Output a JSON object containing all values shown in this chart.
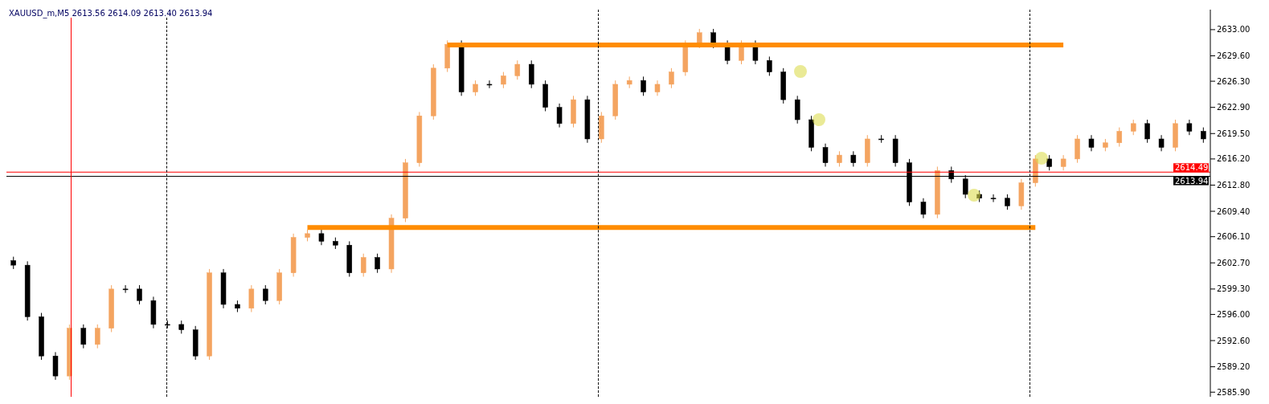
{
  "chart_data": {
    "type": "candlestick",
    "title": "XAUUSD_m,M5 2613.56 2614.09 2613.40 2613.94",
    "categories": [
      null,
      null,
      null,
      null,
      null,
      null,
      null,
      null,
      null,
      null,
      null,
      null,
      null,
      null,
      null,
      null,
      null,
      null,
      null,
      null,
      null,
      null,
      null,
      null,
      null,
      null,
      null,
      null,
      null,
      null,
      null,
      null,
      null,
      null,
      null,
      null,
      null,
      null,
      null,
      null,
      null,
      null,
      null,
      null,
      null,
      null,
      null,
      null,
      null,
      null,
      null,
      null,
      null,
      null,
      null,
      null,
      null,
      null,
      null,
      null,
      null,
      null,
      null,
      null,
      null,
      null,
      null,
      null,
      null,
      null,
      null,
      null,
      null,
      null,
      null,
      null,
      null,
      null,
      null,
      null,
      null,
      null,
      null,
      null,
      null,
      null
    ],
    "ohlc": [
      [
        2603.0,
        2603.5,
        2601.9,
        2602.4
      ],
      [
        2602.4,
        2602.9,
        2595.2,
        2595.7
      ],
      [
        2595.7,
        2596.2,
        2590.1,
        2590.6
      ],
      [
        2590.6,
        2591.1,
        2587.5,
        2588.0
      ],
      [
        2588.0,
        2594.7,
        2587.5,
        2594.2
      ],
      [
        2594.2,
        2594.7,
        2591.6,
        2592.1
      ],
      [
        2592.1,
        2594.7,
        2591.6,
        2594.2
      ],
      [
        2594.2,
        2599.8,
        2593.7,
        2599.3
      ],
      [
        2599.3,
        2599.8,
        2598.8,
        2599.3
      ],
      [
        2599.3,
        2599.8,
        2597.3,
        2597.8
      ],
      [
        2597.8,
        2598.3,
        2594.2,
        2594.7
      ],
      [
        2594.7,
        2595.2,
        2594.2,
        2594.7
      ],
      [
        2594.7,
        2595.2,
        2593.5,
        2594.0
      ],
      [
        2594.0,
        2594.5,
        2590.1,
        2590.6
      ],
      [
        2590.6,
        2601.9,
        2590.1,
        2601.4
      ],
      [
        2601.4,
        2601.9,
        2596.8,
        2597.3
      ],
      [
        2597.3,
        2597.8,
        2596.3,
        2596.8
      ],
      [
        2596.8,
        2599.8,
        2596.3,
        2599.3
      ],
      [
        2599.3,
        2599.8,
        2597.3,
        2597.8
      ],
      [
        2597.8,
        2601.9,
        2597.3,
        2601.4
      ],
      [
        2601.4,
        2606.5,
        2600.9,
        2606.0
      ],
      [
        2606.0,
        2607.0,
        2605.5,
        2606.5
      ],
      [
        2606.5,
        2607.0,
        2605.0,
        2605.5
      ],
      [
        2605.5,
        2606.0,
        2604.5,
        2605.0
      ],
      [
        2605.0,
        2605.5,
        2600.9,
        2601.4
      ],
      [
        2601.4,
        2603.9,
        2600.9,
        2603.4
      ],
      [
        2603.4,
        2603.9,
        2601.4,
        2601.9
      ],
      [
        2601.9,
        2609.0,
        2601.4,
        2608.5
      ],
      [
        2608.5,
        2616.2,
        2608.0,
        2615.7
      ],
      [
        2615.7,
        2622.3,
        2615.2,
        2621.8
      ],
      [
        2621.8,
        2628.5,
        2621.3,
        2628.0
      ],
      [
        2628.0,
        2631.6,
        2627.5,
        2631.1
      ],
      [
        2631.1,
        2631.6,
        2624.4,
        2624.9
      ],
      [
        2624.9,
        2626.4,
        2624.4,
        2625.9
      ],
      [
        2625.9,
        2626.4,
        2625.4,
        2625.9
      ],
      [
        2625.9,
        2627.5,
        2625.4,
        2627.0
      ],
      [
        2627.0,
        2629.0,
        2626.5,
        2628.5
      ],
      [
        2628.5,
        2629.0,
        2625.4,
        2625.9
      ],
      [
        2625.9,
        2626.4,
        2622.4,
        2622.9
      ],
      [
        2622.9,
        2623.4,
        2620.3,
        2620.8
      ],
      [
        2620.8,
        2624.4,
        2620.3,
        2623.9
      ],
      [
        2623.9,
        2624.4,
        2618.3,
        2618.8
      ],
      [
        2618.8,
        2622.3,
        2618.3,
        2621.8
      ],
      [
        2621.8,
        2626.4,
        2621.3,
        2625.9
      ],
      [
        2625.9,
        2626.9,
        2625.4,
        2626.4
      ],
      [
        2626.4,
        2626.9,
        2624.4,
        2624.9
      ],
      [
        2624.9,
        2626.4,
        2624.4,
        2625.9
      ],
      [
        2625.9,
        2628.0,
        2625.4,
        2627.5
      ],
      [
        2627.5,
        2631.6,
        2627.0,
        2631.1
      ],
      [
        2631.1,
        2633.1,
        2630.6,
        2632.6
      ],
      [
        2632.6,
        2633.1,
        2630.6,
        2631.1
      ],
      [
        2631.1,
        2631.6,
        2628.5,
        2629.0
      ],
      [
        2629.0,
        2631.6,
        2628.5,
        2631.1
      ],
      [
        2631.1,
        2631.6,
        2628.5,
        2629.0
      ],
      [
        2629.0,
        2629.5,
        2627.0,
        2627.5
      ],
      [
        2627.5,
        2628.0,
        2623.4,
        2623.9
      ],
      [
        2623.9,
        2624.4,
        2620.8,
        2621.3
      ],
      [
        2621.3,
        2621.8,
        2617.2,
        2617.7
      ],
      [
        2617.7,
        2618.2,
        2615.2,
        2615.7
      ],
      [
        2615.7,
        2617.2,
        2615.2,
        2616.7
      ],
      [
        2616.7,
        2617.2,
        2615.2,
        2615.7
      ],
      [
        2615.7,
        2619.3,
        2615.2,
        2618.8
      ],
      [
        2618.8,
        2619.3,
        2618.3,
        2618.8
      ],
      [
        2618.8,
        2619.3,
        2615.2,
        2615.7
      ],
      [
        2615.7,
        2616.2,
        2610.1,
        2610.6
      ],
      [
        2610.6,
        2611.1,
        2608.5,
        2609.0
      ],
      [
        2609.0,
        2615.2,
        2608.5,
        2614.7
      ],
      [
        2614.7,
        2615.2,
        2613.1,
        2613.6
      ],
      [
        2613.6,
        2614.1,
        2611.1,
        2611.6
      ],
      [
        2611.6,
        2612.1,
        2610.6,
        2611.1
      ],
      [
        2611.1,
        2611.6,
        2610.6,
        2611.1
      ],
      [
        2611.1,
        2611.6,
        2609.6,
        2610.1
      ],
      [
        2610.1,
        2613.6,
        2609.6,
        2613.1
      ],
      [
        2613.1,
        2616.7,
        2612.6,
        2616.2
      ],
      [
        2616.2,
        2616.7,
        2614.7,
        2615.2
      ],
      [
        2615.2,
        2616.7,
        2614.7,
        2616.2
      ],
      [
        2616.2,
        2619.3,
        2615.7,
        2618.8
      ],
      [
        2618.8,
        2619.3,
        2617.2,
        2617.7
      ],
      [
        2617.7,
        2618.8,
        2617.2,
        2618.3
      ],
      [
        2618.3,
        2620.3,
        2617.8,
        2619.8
      ],
      [
        2619.8,
        2621.3,
        2619.3,
        2620.8
      ],
      [
        2620.8,
        2621.3,
        2618.3,
        2618.8
      ],
      [
        2618.8,
        2619.3,
        2617.2,
        2617.7
      ],
      [
        2617.7,
        2621.3,
        2617.2,
        2620.8
      ],
      [
        2620.8,
        2621.3,
        2619.3,
        2619.8
      ],
      [
        2619.8,
        2620.3,
        2618.3,
        2618.8
      ]
    ],
    "colors": [
      "#000000",
      "#000000",
      "#000000",
      "#000000",
      "#f4a460",
      "#000000",
      "#f4a460",
      "#f4a460",
      "#000000",
      "#000000",
      "#000000",
      "#000000",
      "#000000",
      "#000000",
      "#f4a460",
      "#000000",
      "#000000",
      "#f4a460",
      "#000000",
      "#f4a460",
      "#f4a460",
      "#f4a460",
      "#000000",
      "#000000",
      "#000000",
      "#f4a460",
      "#000000",
      "#f4a460",
      "#f4a460",
      "#f4a460",
      "#f4a460",
      "#f4a460",
      "#000000",
      "#f4a460",
      "#000000",
      "#f4a460",
      "#f4a460",
      "#000000",
      "#000000",
      "#000000",
      "#f4a460",
      "#000000",
      "#f4a460",
      "#f4a460",
      "#f4a460",
      "#000000",
      "#f4a460",
      "#f4a460",
      "#f4a460",
      "#f4a460",
      "#000000",
      "#000000",
      "#f4a460",
      "#000000",
      "#000000",
      "#000000",
      "#000000",
      "#000000",
      "#000000",
      "#f4a460",
      "#000000",
      "#f4a460",
      "#000000",
      "#000000",
      "#000000",
      "#000000",
      "#f4a460",
      "#000000",
      "#000000",
      "#000000",
      "#000000",
      "#000000",
      "#f4a460",
      "#f4a460",
      "#000000",
      "#f4a460",
      "#f4a460",
      "#000000",
      "#f4a460",
      "#f4a460",
      "#f4a460",
      "#000000",
      "#000000",
      "#f4a460",
      "#000000",
      "#000000"
    ],
    "series": [
      {
        "type": "line",
        "color": "#ff8c00",
        "values": [
          null,
          null,
          null,
          null,
          null,
          null,
          null,
          null,
          null,
          null,
          null,
          null,
          null,
          null,
          null,
          null,
          null,
          null,
          null,
          null,
          null,
          null,
          null,
          null,
          null,
          null,
          null,
          null,
          null,
          null,
          null,
          2631.0,
          2631.0,
          2631.0,
          2631.0,
          2631.0,
          2631.0,
          2631.0,
          2631.0,
          2631.0,
          2631.0,
          2631.0,
          2631.0,
          2631.0,
          2631.0,
          2631.0,
          2631.0,
          2631.0,
          2631.0,
          2631.0,
          2631.0,
          2631.0,
          2631.0,
          2631.0,
          2631.0,
          2631.0,
          2631.0,
          2631.0,
          2631.0,
          2631.0,
          2631.0,
          2631.0,
          2631.0,
          2631.0,
          2631.0,
          2631.0,
          2631.0,
          2631.0,
          2631.0,
          2631.0,
          2631.0,
          2631.0,
          2631.0,
          2631.0,
          2631.0,
          2631.0,
          null,
          null,
          null,
          null,
          null,
          null,
          null,
          null,
          null,
          null
        ]
      },
      {
        "type": "line",
        "color": "#ff8c00",
        "values": [
          null,
          null,
          null,
          null,
          null,
          null,
          null,
          null,
          null,
          null,
          null,
          null,
          null,
          null,
          null,
          null,
          null,
          null,
          null,
          null,
          null,
          2607.3,
          2607.3,
          2607.3,
          2607.3,
          2607.3,
          2607.3,
          2607.3,
          2607.3,
          2607.3,
          2607.3,
          2607.3,
          2607.3,
          2607.3,
          2607.3,
          2607.3,
          2607.3,
          2607.3,
          2607.3,
          2607.3,
          2607.3,
          2607.3,
          2607.3,
          2607.3,
          2607.3,
          2607.3,
          2607.3,
          2607.3,
          2607.3,
          2607.3,
          2607.3,
          2607.3,
          2607.3,
          2607.3,
          2607.3,
          2607.3,
          2607.3,
          2607.3,
          2607.3,
          2607.3,
          2607.3,
          2607.3,
          2607.3,
          2607.3,
          2607.3,
          2607.3,
          2607.3,
          2607.3,
          2607.3,
          2607.3,
          2607.3,
          2607.3,
          2607.3,
          2607.3,
          null,
          null,
          null,
          null,
          null,
          null,
          null,
          null,
          null,
          null,
          null,
          null
        ]
      }
    ],
    "ylim": [
      2585.3,
      2635.6
    ],
    "yticks": [
      {
        "value": 2585.9,
        "label": "2585.90"
      },
      {
        "value": 2589.2,
        "label": "2589.20"
      },
      {
        "value": 2592.6,
        "label": "2592.60"
      },
      {
        "value": 2596.0,
        "label": "2596.00"
      },
      {
        "value": 2599.3,
        "label": "2599.30"
      },
      {
        "value": 2602.7,
        "label": "2602.70"
      },
      {
        "value": 2606.1,
        "label": "2606.10"
      },
      {
        "value": 2609.4,
        "label": "2609.40"
      },
      {
        "value": 2612.8,
        "label": "2612.80"
      },
      {
        "value": 2616.2,
        "label": "2616.20"
      },
      {
        "value": 2619.5,
        "label": "2619.50"
      },
      {
        "value": 2622.9,
        "label": "2622.90"
      },
      {
        "value": 2626.3,
        "label": "2626.30"
      },
      {
        "value": 2629.6,
        "label": "2629.60"
      },
      {
        "value": 2633.0,
        "label": "2633.00"
      }
    ],
    "ref_lines": [
      {
        "axis": "y",
        "value": 2614.49,
        "label": "2614.49",
        "color": "#ff0000"
      },
      {
        "axis": "y",
        "value": 2613.94,
        "label": "2613.94",
        "color": "#000000"
      }
    ],
    "tick_labels": "y"
  }
}
